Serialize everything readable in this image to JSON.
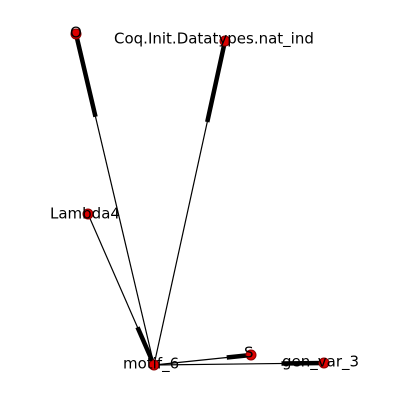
{
  "graph": {
    "nodes": [
      {
        "id": "O",
        "label": "O"
      },
      {
        "id": "nat_ind",
        "label": "Coq.Init.Datatypes.nat_ind"
      },
      {
        "id": "Lambda4",
        "label": "Lambda4"
      },
      {
        "id": "motif_6",
        "label": "motif_6"
      },
      {
        "id": "S",
        "label": "S"
      },
      {
        "id": "gen_var_3",
        "label": "gen_var_3"
      }
    ],
    "edges": [
      {
        "source": "motif_6",
        "target": "O",
        "directed": true
      },
      {
        "source": "motif_6",
        "target": "nat_ind",
        "directed": true
      },
      {
        "source": "Lambda4",
        "target": "motif_6",
        "directed": true
      },
      {
        "source": "motif_6",
        "target": "S",
        "directed": true
      },
      {
        "source": "motif_6",
        "target": "gen_var_3",
        "directed": true
      }
    ],
    "node_color": "#dd0000"
  }
}
